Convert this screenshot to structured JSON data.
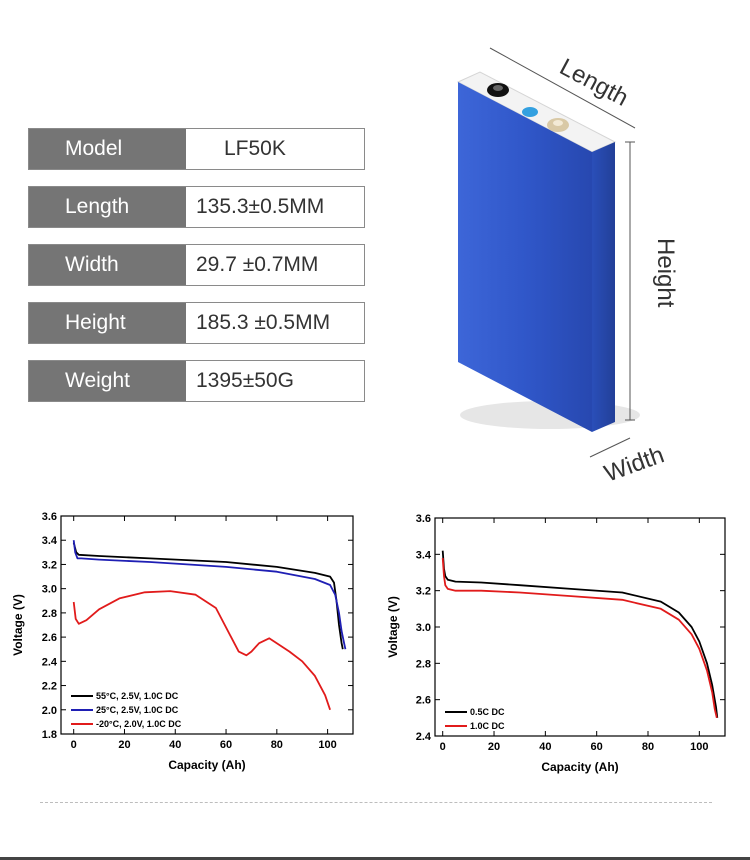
{
  "specs": [
    {
      "label": "Model",
      "value": "LF50K"
    },
    {
      "label": "Length",
      "value": "135.3±0.5MM"
    },
    {
      "label": "Width",
      "value": "29.7 ±0.7MM"
    },
    {
      "label": "Height",
      "value": "185.3 ±0.5MM"
    },
    {
      "label": "Weight",
      "value": "1395±50G"
    }
  ],
  "dimensions": {
    "length": "Length",
    "height": "Height",
    "width": "Width"
  },
  "colors": {
    "label_bg": "#757575",
    "cell_blue": "#2f55c5",
    "cell_top": "#f2f2f2"
  },
  "chart_data": [
    {
      "type": "line",
      "xlabel": "Capacity (Ah)",
      "ylabel": "Voltage (V)",
      "xlim": [
        -5,
        110
      ],
      "ylim": [
        1.8,
        3.6
      ],
      "xticks": [
        0,
        20,
        40,
        60,
        80,
        100
      ],
      "yticks": [
        1.8,
        2.0,
        2.2,
        2.4,
        2.6,
        2.8,
        3.0,
        3.2,
        3.4,
        3.6
      ],
      "legend_position": "bottom-left",
      "series": [
        {
          "name": "55°C, 2.5V, 1.0C DC",
          "color": "#000000",
          "x": [
            0,
            1,
            2,
            10,
            30,
            60,
            80,
            95,
            101,
            102.5,
            103.5,
            104.5,
            105.5,
            106
          ],
          "y": [
            3.38,
            3.3,
            3.28,
            3.27,
            3.25,
            3.22,
            3.18,
            3.13,
            3.1,
            3.05,
            2.9,
            2.7,
            2.55,
            2.5
          ]
        },
        {
          "name": "25°C, 2.5V, 1.0C DC",
          "color": "#1f1fb4",
          "x": [
            0,
            0.6,
            1.5,
            3,
            10,
            30,
            60,
            80,
            95,
            101,
            103,
            104.5,
            105.5,
            106.5,
            107
          ],
          "y": [
            3.4,
            3.3,
            3.25,
            3.25,
            3.24,
            3.22,
            3.18,
            3.14,
            3.08,
            3.03,
            2.95,
            2.8,
            2.65,
            2.55,
            2.5
          ]
        },
        {
          "name": "-20°C, 2.0V, 1.0C DC",
          "color": "#e11b1b",
          "x": [
            0,
            0.8,
            2,
            5,
            10,
            18,
            28,
            38,
            48,
            56,
            62,
            65,
            68,
            70,
            73,
            77,
            80,
            85,
            90,
            95,
            99,
            101
          ],
          "y": [
            2.89,
            2.75,
            2.71,
            2.74,
            2.83,
            2.92,
            2.97,
            2.98,
            2.95,
            2.84,
            2.6,
            2.48,
            2.45,
            2.48,
            2.55,
            2.59,
            2.55,
            2.48,
            2.4,
            2.28,
            2.12,
            2.0
          ]
        }
      ]
    },
    {
      "type": "line",
      "xlabel": "Capacity (Ah)",
      "ylabel": "Voltage (V)",
      "xlim": [
        -3,
        110
      ],
      "ylim": [
        2.4,
        3.6
      ],
      "xticks": [
        0,
        20,
        40,
        60,
        80,
        100
      ],
      "yticks": [
        2.4,
        2.6,
        2.8,
        3.0,
        3.2,
        3.4,
        3.6
      ],
      "legend_position": "bottom-left",
      "series": [
        {
          "name": "0.5C DC",
          "color": "#000000",
          "x": [
            0,
            0.5,
            1,
            2,
            5,
            15,
            30,
            50,
            70,
            85,
            92,
            97,
            100,
            103,
            105,
            106.5,
            107
          ],
          "y": [
            3.42,
            3.32,
            3.28,
            3.26,
            3.25,
            3.245,
            3.23,
            3.21,
            3.19,
            3.14,
            3.08,
            3.0,
            2.92,
            2.8,
            2.68,
            2.56,
            2.5
          ]
        },
        {
          "name": "1.0C DC",
          "color": "#e11b1b",
          "x": [
            0,
            0.5,
            1,
            2,
            5,
            15,
            30,
            50,
            70,
            85,
            92,
            97,
            100,
            103,
            105,
            106,
            106.8
          ],
          "y": [
            3.38,
            3.28,
            3.23,
            3.21,
            3.2,
            3.2,
            3.19,
            3.17,
            3.15,
            3.1,
            3.04,
            2.96,
            2.88,
            2.76,
            2.64,
            2.55,
            2.5
          ]
        }
      ]
    }
  ]
}
